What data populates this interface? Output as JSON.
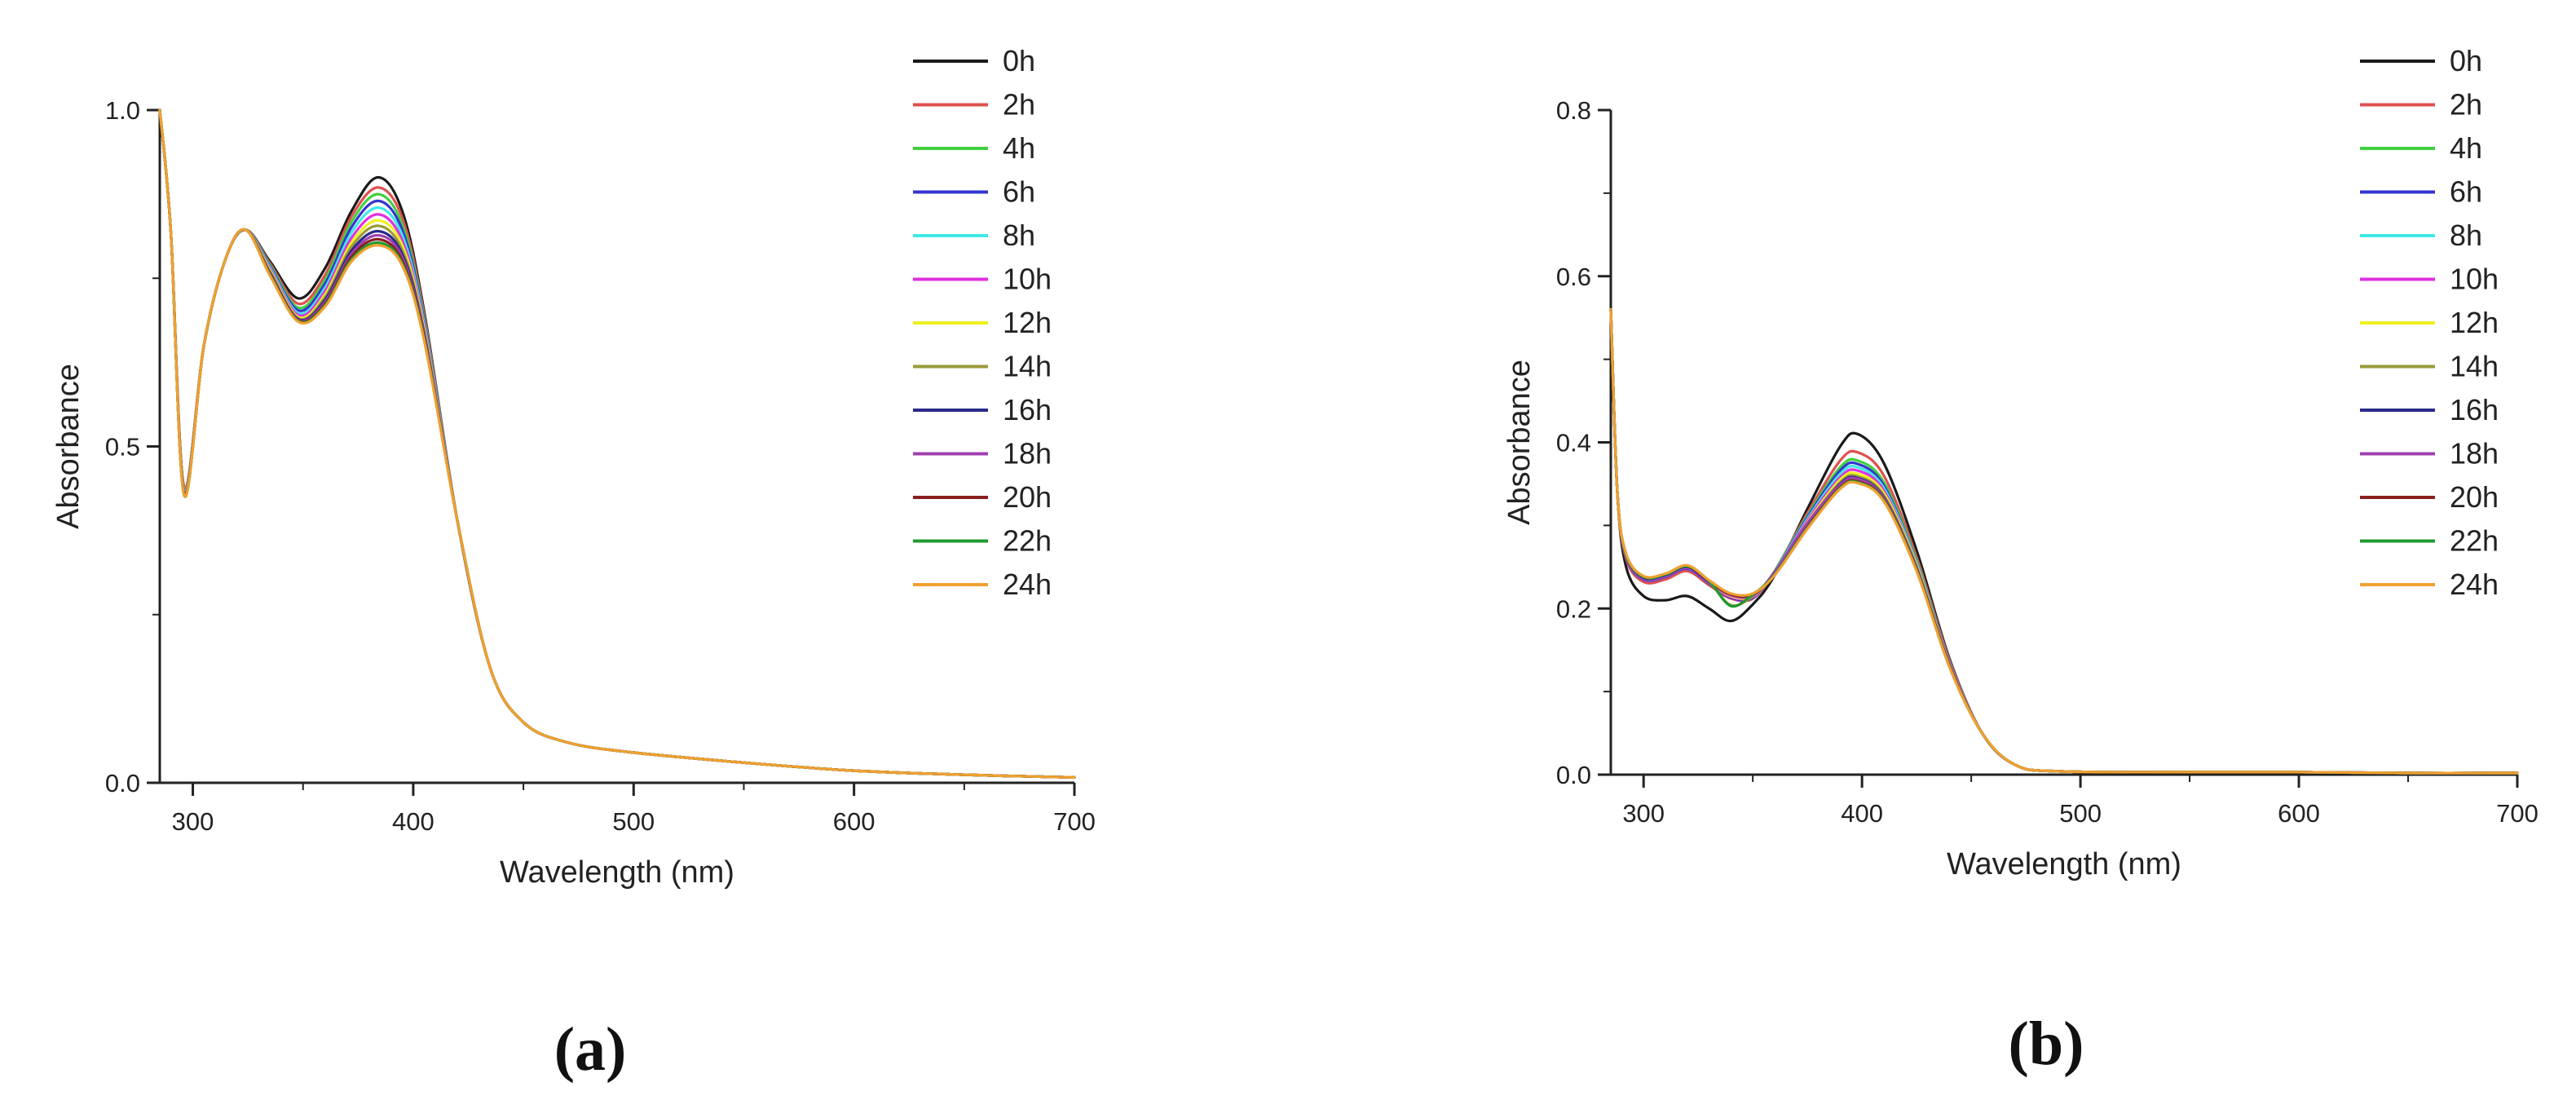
{
  "legend_labels": [
    "0h",
    "2h",
    "4h",
    "6h",
    "8h",
    "10h",
    "12h",
    "14h",
    "16h",
    "18h",
    "20h",
    "22h",
    "24h"
  ],
  "series_colors": [
    "#1a1a1a",
    "#e05050",
    "#40d040",
    "#3535d0",
    "#40e8e8",
    "#e030e0",
    "#f0f020",
    "#9a9a3a",
    "#2a2a8a",
    "#a040b0",
    "#8a1f1f",
    "#209a30",
    "#f0a030"
  ],
  "chart_data": [
    {
      "type": "line",
      "panel_label": "(a)",
      "xlabel": "Wavelength (nm)",
      "ylabel": "Absorbance",
      "xlim": [
        285,
        700
      ],
      "ylim": [
        0,
        1.0
      ],
      "xticks": [
        300,
        400,
        500,
        600,
        700
      ],
      "yticks": [
        0.0,
        0.5,
        1.0
      ],
      "ytick_labels": [
        "0.0",
        "0.5",
        "1.0"
      ],
      "legend_position": "top-right",
      "grid": false,
      "x": [
        285,
        290,
        296,
        305,
        315,
        324,
        335,
        348,
        360,
        372,
        384,
        395,
        405,
        420,
        435,
        450,
        470,
        500,
        550,
        600,
        650,
        700
      ],
      "series": [
        {
          "name": "0h",
          "y": [
            1.0,
            0.82,
            0.44,
            0.65,
            0.78,
            0.822,
            0.775,
            0.72,
            0.765,
            0.85,
            0.9,
            0.85,
            0.7,
            0.39,
            0.17,
            0.09,
            0.06,
            0.045,
            0.03,
            0.018,
            0.012,
            0.008
          ]
        },
        {
          "name": "2h",
          "y": [
            1.0,
            0.82,
            0.44,
            0.65,
            0.78,
            0.822,
            0.772,
            0.712,
            0.755,
            0.842,
            0.885,
            0.84,
            0.695,
            0.39,
            0.17,
            0.09,
            0.06,
            0.045,
            0.03,
            0.018,
            0.012,
            0.008
          ]
        },
        {
          "name": "4h",
          "y": [
            1.0,
            0.82,
            0.435,
            0.65,
            0.78,
            0.822,
            0.77,
            0.706,
            0.748,
            0.834,
            0.875,
            0.83,
            0.69,
            0.39,
            0.17,
            0.09,
            0.06,
            0.045,
            0.03,
            0.018,
            0.012,
            0.008
          ]
        },
        {
          "name": "6h",
          "y": [
            1.0,
            0.82,
            0.435,
            0.65,
            0.78,
            0.822,
            0.768,
            0.702,
            0.742,
            0.826,
            0.865,
            0.822,
            0.686,
            0.39,
            0.17,
            0.09,
            0.06,
            0.045,
            0.03,
            0.018,
            0.012,
            0.008
          ]
        },
        {
          "name": "8h",
          "y": [
            1.0,
            0.82,
            0.435,
            0.65,
            0.78,
            0.822,
            0.766,
            0.698,
            0.736,
            0.818,
            0.855,
            0.814,
            0.682,
            0.39,
            0.17,
            0.09,
            0.06,
            0.045,
            0.03,
            0.018,
            0.012,
            0.008
          ]
        },
        {
          "name": "10h",
          "y": [
            1.0,
            0.82,
            0.432,
            0.65,
            0.78,
            0.822,
            0.764,
            0.695,
            0.731,
            0.81,
            0.845,
            0.806,
            0.678,
            0.39,
            0.17,
            0.09,
            0.06,
            0.045,
            0.03,
            0.018,
            0.012,
            0.008
          ]
        },
        {
          "name": "12h",
          "y": [
            1.0,
            0.82,
            0.432,
            0.65,
            0.78,
            0.822,
            0.762,
            0.692,
            0.726,
            0.803,
            0.836,
            0.799,
            0.674,
            0.39,
            0.17,
            0.09,
            0.06,
            0.045,
            0.03,
            0.018,
            0.012,
            0.008
          ]
        },
        {
          "name": "14h",
          "y": [
            1.0,
            0.82,
            0.432,
            0.65,
            0.78,
            0.822,
            0.76,
            0.69,
            0.722,
            0.797,
            0.828,
            0.792,
            0.67,
            0.39,
            0.17,
            0.09,
            0.06,
            0.045,
            0.03,
            0.018,
            0.012,
            0.008
          ]
        },
        {
          "name": "16h",
          "y": [
            1.0,
            0.82,
            0.43,
            0.65,
            0.78,
            0.822,
            0.758,
            0.689,
            0.718,
            0.791,
            0.82,
            0.786,
            0.667,
            0.39,
            0.17,
            0.09,
            0.06,
            0.045,
            0.03,
            0.018,
            0.012,
            0.008
          ]
        },
        {
          "name": "18h",
          "y": [
            1.0,
            0.82,
            0.43,
            0.65,
            0.78,
            0.822,
            0.757,
            0.688,
            0.715,
            0.786,
            0.814,
            0.781,
            0.664,
            0.39,
            0.17,
            0.09,
            0.06,
            0.045,
            0.03,
            0.018,
            0.012,
            0.008
          ]
        },
        {
          "name": "20h",
          "y": [
            1.0,
            0.82,
            0.43,
            0.65,
            0.78,
            0.822,
            0.756,
            0.687,
            0.712,
            0.782,
            0.808,
            0.776,
            0.661,
            0.39,
            0.17,
            0.09,
            0.06,
            0.045,
            0.03,
            0.018,
            0.012,
            0.008
          ]
        },
        {
          "name": "22h",
          "y": [
            1.0,
            0.82,
            0.428,
            0.65,
            0.78,
            0.822,
            0.755,
            0.686,
            0.71,
            0.778,
            0.803,
            0.772,
            0.659,
            0.39,
            0.17,
            0.09,
            0.06,
            0.045,
            0.03,
            0.018,
            0.012,
            0.008
          ]
        },
        {
          "name": "24h",
          "y": [
            1.0,
            0.82,
            0.428,
            0.65,
            0.78,
            0.822,
            0.754,
            0.685,
            0.708,
            0.775,
            0.799,
            0.769,
            0.657,
            0.39,
            0.17,
            0.09,
            0.06,
            0.045,
            0.03,
            0.018,
            0.012,
            0.008
          ]
        }
      ]
    },
    {
      "type": "line",
      "panel_label": "(b)",
      "xlabel": "Wavelength (nm)",
      "ylabel": "Absorbance",
      "xlim": [
        285,
        700
      ],
      "ylim": [
        0,
        0.8
      ],
      "xticks": [
        300,
        400,
        500,
        600,
        700
      ],
      "yticks": [
        0.0,
        0.2,
        0.4,
        0.6,
        0.8
      ],
      "ytick_labels": [
        "0.0",
        "0.2",
        "0.4",
        "0.6",
        "0.8"
      ],
      "legend_position": "top-right",
      "grid": false,
      "x": [
        285,
        288,
        292,
        300,
        310,
        320,
        330,
        340,
        350,
        360,
        375,
        390,
        398,
        410,
        425,
        440,
        455,
        470,
        490,
        550,
        600,
        650,
        700
      ],
      "series": [
        {
          "name": "0h",
          "y": [
            0.56,
            0.34,
            0.25,
            0.215,
            0.21,
            0.215,
            0.2,
            0.185,
            0.205,
            0.24,
            0.32,
            0.395,
            0.41,
            0.375,
            0.27,
            0.14,
            0.05,
            0.012,
            0.004,
            0.003,
            0.003,
            0.002,
            0.002
          ]
        },
        {
          "name": "2h",
          "y": [
            0.56,
            0.34,
            0.26,
            0.232,
            0.235,
            0.245,
            0.228,
            0.212,
            0.212,
            0.245,
            0.315,
            0.378,
            0.388,
            0.36,
            0.262,
            0.138,
            0.05,
            0.012,
            0.004,
            0.003,
            0.003,
            0.002,
            0.002
          ]
        },
        {
          "name": "4h",
          "y": [
            0.56,
            0.34,
            0.262,
            0.235,
            0.238,
            0.248,
            0.23,
            0.214,
            0.213,
            0.245,
            0.312,
            0.37,
            0.378,
            0.352,
            0.258,
            0.136,
            0.05,
            0.012,
            0.004,
            0.003,
            0.003,
            0.002,
            0.002
          ]
        },
        {
          "name": "6h",
          "y": [
            0.56,
            0.34,
            0.262,
            0.235,
            0.238,
            0.248,
            0.23,
            0.213,
            0.213,
            0.244,
            0.31,
            0.366,
            0.374,
            0.348,
            0.256,
            0.135,
            0.05,
            0.012,
            0.004,
            0.003,
            0.003,
            0.002,
            0.002
          ]
        },
        {
          "name": "8h",
          "y": [
            0.56,
            0.34,
            0.263,
            0.236,
            0.239,
            0.249,
            0.231,
            0.214,
            0.214,
            0.244,
            0.308,
            0.362,
            0.37,
            0.345,
            0.255,
            0.134,
            0.05,
            0.012,
            0.004,
            0.003,
            0.003,
            0.002,
            0.002
          ]
        },
        {
          "name": "10h",
          "y": [
            0.56,
            0.34,
            0.263,
            0.236,
            0.239,
            0.249,
            0.231,
            0.214,
            0.214,
            0.243,
            0.306,
            0.358,
            0.366,
            0.342,
            0.253,
            0.134,
            0.05,
            0.012,
            0.004,
            0.003,
            0.003,
            0.002,
            0.002
          ]
        },
        {
          "name": "12h",
          "y": [
            0.56,
            0.34,
            0.264,
            0.237,
            0.24,
            0.25,
            0.232,
            0.215,
            0.215,
            0.243,
            0.304,
            0.355,
            0.362,
            0.339,
            0.252,
            0.133,
            0.05,
            0.012,
            0.004,
            0.003,
            0.003,
            0.002,
            0.002
          ]
        },
        {
          "name": "14h",
          "y": [
            0.56,
            0.34,
            0.264,
            0.237,
            0.24,
            0.25,
            0.232,
            0.204,
            0.215,
            0.242,
            0.302,
            0.352,
            0.359,
            0.336,
            0.25,
            0.132,
            0.05,
            0.012,
            0.004,
            0.003,
            0.003,
            0.002,
            0.002
          ]
        },
        {
          "name": "16h",
          "y": [
            0.56,
            0.34,
            0.264,
            0.237,
            0.24,
            0.25,
            0.232,
            0.216,
            0.216,
            0.242,
            0.301,
            0.35,
            0.357,
            0.334,
            0.249,
            0.132,
            0.05,
            0.012,
            0.004,
            0.003,
            0.003,
            0.002,
            0.002
          ]
        },
        {
          "name": "18h",
          "y": [
            0.56,
            0.34,
            0.265,
            0.238,
            0.241,
            0.251,
            0.233,
            0.216,
            0.216,
            0.244,
            0.303,
            0.349,
            0.356,
            0.333,
            0.248,
            0.131,
            0.05,
            0.012,
            0.004,
            0.003,
            0.003,
            0.002,
            0.002
          ]
        },
        {
          "name": "20h",
          "y": [
            0.56,
            0.34,
            0.265,
            0.238,
            0.241,
            0.251,
            0.233,
            0.217,
            0.217,
            0.241,
            0.298,
            0.346,
            0.353,
            0.331,
            0.247,
            0.131,
            0.05,
            0.012,
            0.004,
            0.003,
            0.003,
            0.002,
            0.002
          ]
        },
        {
          "name": "22h",
          "y": [
            0.56,
            0.34,
            0.265,
            0.238,
            0.241,
            0.251,
            0.233,
            0.203,
            0.217,
            0.241,
            0.297,
            0.345,
            0.352,
            0.33,
            0.246,
            0.13,
            0.05,
            0.012,
            0.004,
            0.003,
            0.003,
            0.002,
            0.002
          ]
        },
        {
          "name": "24h",
          "y": [
            0.56,
            0.34,
            0.266,
            0.239,
            0.242,
            0.252,
            0.234,
            0.218,
            0.218,
            0.24,
            0.296,
            0.344,
            0.351,
            0.329,
            0.245,
            0.13,
            0.05,
            0.012,
            0.004,
            0.003,
            0.003,
            0.002,
            0.002
          ]
        }
      ]
    }
  ]
}
